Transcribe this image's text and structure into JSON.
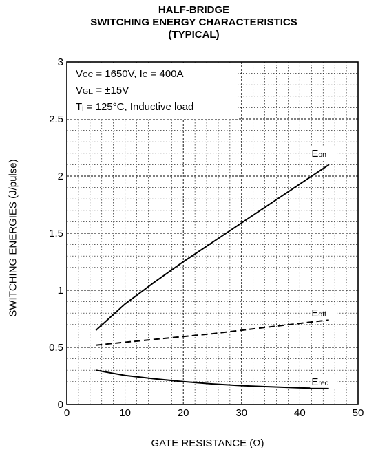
{
  "chart_data": {
    "type": "line",
    "title": [
      "HALF-BRIDGE",
      "SWITCHING ENERGY CHARACTERISTICS",
      "(TYPICAL)"
    ],
    "xlabel": "GATE RESISTANCE (Ω)",
    "ylabel": "SWITCHING ENERGIES (J/pulse)",
    "xlim": [
      0,
      50
    ],
    "ylim": [
      0,
      3
    ],
    "x_ticks": [
      "0",
      "10",
      "20",
      "30",
      "40",
      "50"
    ],
    "y_ticks": [
      "0",
      "0.5",
      "1",
      "1.5",
      "2",
      "2.5",
      "3"
    ],
    "grid": true,
    "conditions": [
      {
        "main": "V",
        "sub": "CC",
        "rest": " = 1650V, I",
        "sub2": "C",
        "rest2": " = 400A"
      },
      {
        "main": "V",
        "sub": "GE",
        "rest": " = ±15V",
        "sub2": "",
        "rest2": ""
      },
      {
        "main": "T",
        "sub": "j",
        "rest": " = 125°C, Inductive load",
        "sub2": "",
        "rest2": ""
      }
    ],
    "series": [
      {
        "name": "Eon",
        "label_main": "E",
        "label_sub": "on",
        "style": "solid",
        "x": [
          5,
          10,
          15,
          20,
          25,
          30,
          35,
          40,
          45
        ],
        "values": [
          0.65,
          0.88,
          1.07,
          1.25,
          1.42,
          1.59,
          1.76,
          1.93,
          2.1
        ]
      },
      {
        "name": "Eoff",
        "label_main": "E",
        "label_sub": "off",
        "style": "dashed",
        "x": [
          5,
          10,
          15,
          20,
          25,
          30,
          35,
          40,
          45
        ],
        "values": [
          0.52,
          0.545,
          0.57,
          0.595,
          0.62,
          0.65,
          0.68,
          0.71,
          0.74
        ]
      },
      {
        "name": "Erec",
        "label_main": "E",
        "label_sub": "rec",
        "style": "solid",
        "x": [
          5,
          10,
          15,
          20,
          25,
          30,
          35,
          40,
          45
        ],
        "values": [
          0.3,
          0.255,
          0.225,
          0.2,
          0.18,
          0.165,
          0.155,
          0.145,
          0.14
        ]
      }
    ]
  }
}
